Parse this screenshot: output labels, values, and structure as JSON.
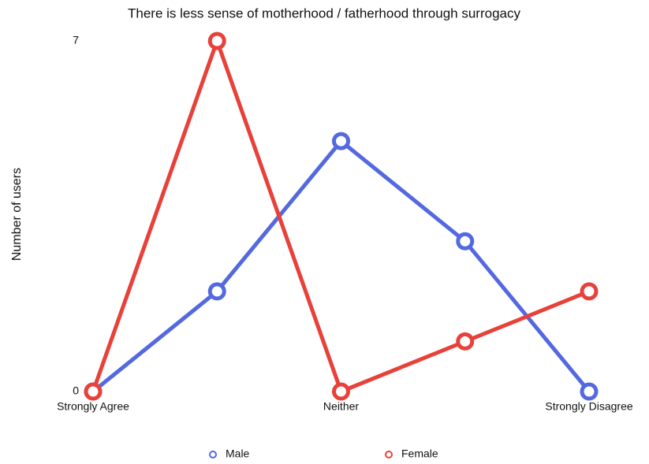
{
  "chart_data": {
    "type": "line",
    "title": "There is less sense of motherhood / fatherhood through surrogacy",
    "y_label": "Number of users",
    "categories": [
      "Strongly Agree",
      null,
      "Neither",
      null,
      "Strongly Disagree"
    ],
    "series": [
      {
        "name": "Male",
        "color": "#5468e0",
        "values": [
          0,
          2,
          5,
          3,
          0
        ]
      },
      {
        "name": "Female",
        "color": "#e8413a",
        "values": [
          0,
          7,
          0,
          1,
          2
        ]
      }
    ],
    "ylim": [
      0,
      7
    ],
    "yticks": [
      0,
      7
    ],
    "grid": false,
    "legend": "bottom"
  }
}
